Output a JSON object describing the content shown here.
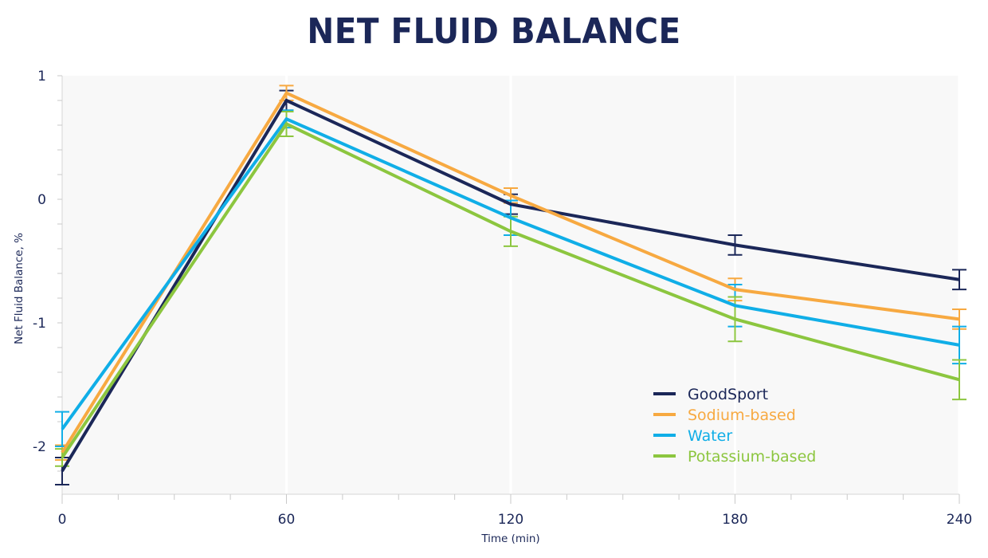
{
  "chart_data": {
    "type": "line",
    "title": "NET FLUID BALANCE",
    "xlabel": "Time (min)",
    "ylabel": "Net Fluid Balance, %",
    "x": [
      0,
      60,
      120,
      180,
      240
    ],
    "x_ticks": [
      0,
      60,
      120,
      180,
      240
    ],
    "x_tick_labels": [
      "0",
      "60",
      "120",
      "180",
      "240"
    ],
    "y_ticks": [
      1,
      0,
      -1,
      -2
    ],
    "y_tick_labels": [
      "1",
      "0",
      "-1",
      "-2"
    ],
    "xlim": [
      0,
      240
    ],
    "ylim": [
      -2.4,
      1.0
    ],
    "grid": "vertical",
    "legend_position": "bottom-right",
    "series": [
      {
        "name": "GoodSport",
        "color": "#1b2758",
        "values": [
          -2.2,
          0.8,
          -0.04,
          -0.37,
          -0.65
        ],
        "errors": [
          0.11,
          0.08,
          0.08,
          0.08,
          0.08
        ]
      },
      {
        "name": "Sodium-based",
        "color": "#f7a941",
        "values": [
          -2.05,
          0.86,
          0.03,
          -0.73,
          -0.97
        ],
        "errors": [
          0.06,
          0.06,
          0.06,
          0.09,
          0.08
        ]
      },
      {
        "name": "Water",
        "color": "#10aee7",
        "values": [
          -1.86,
          0.65,
          -0.15,
          -0.86,
          -1.18
        ],
        "errors": [
          0.14,
          0.07,
          0.14,
          0.17,
          0.15
        ]
      },
      {
        "name": "Potassium-based",
        "color": "#8cc63f",
        "values": [
          -2.09,
          0.61,
          -0.26,
          -0.97,
          -1.46
        ],
        "errors": [
          0.07,
          0.1,
          0.12,
          0.18,
          0.16
        ]
      }
    ]
  }
}
